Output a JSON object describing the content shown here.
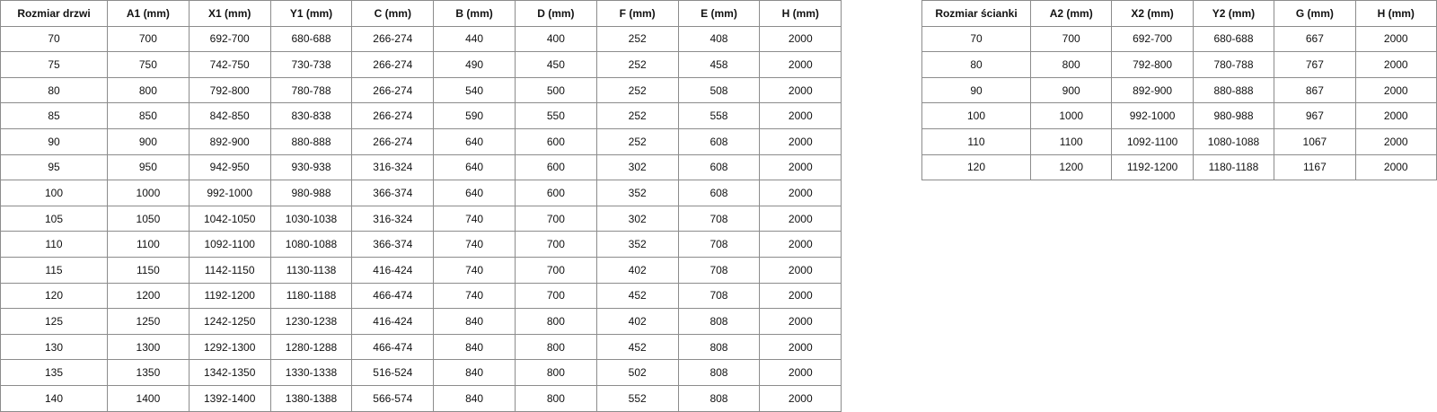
{
  "doors_table": {
    "headers": [
      "Rozmiar drzwi",
      "A1 (mm)",
      "X1 (mm)",
      "Y1 (mm)",
      "C (mm)",
      "B (mm)",
      "D (mm)",
      "F (mm)",
      "E (mm)",
      "H (mm)"
    ],
    "rows": [
      [
        "70",
        "700",
        "692-700",
        "680-688",
        "266-274",
        "440",
        "400",
        "252",
        "408",
        "2000"
      ],
      [
        "75",
        "750",
        "742-750",
        "730-738",
        "266-274",
        "490",
        "450",
        "252",
        "458",
        "2000"
      ],
      [
        "80",
        "800",
        "792-800",
        "780-788",
        "266-274",
        "540",
        "500",
        "252",
        "508",
        "2000"
      ],
      [
        "85",
        "850",
        "842-850",
        "830-838",
        "266-274",
        "590",
        "550",
        "252",
        "558",
        "2000"
      ],
      [
        "90",
        "900",
        "892-900",
        "880-888",
        "266-274",
        "640",
        "600",
        "252",
        "608",
        "2000"
      ],
      [
        "95",
        "950",
        "942-950",
        "930-938",
        "316-324",
        "640",
        "600",
        "302",
        "608",
        "2000"
      ],
      [
        "100",
        "1000",
        "992-1000",
        "980-988",
        "366-374",
        "640",
        "600",
        "352",
        "608",
        "2000"
      ],
      [
        "105",
        "1050",
        "1042-1050",
        "1030-1038",
        "316-324",
        "740",
        "700",
        "302",
        "708",
        "2000"
      ],
      [
        "110",
        "1100",
        "1092-1100",
        "1080-1088",
        "366-374",
        "740",
        "700",
        "352",
        "708",
        "2000"
      ],
      [
        "115",
        "1150",
        "1142-1150",
        "1130-1138",
        "416-424",
        "740",
        "700",
        "402",
        "708",
        "2000"
      ],
      [
        "120",
        "1200",
        "1192-1200",
        "1180-1188",
        "466-474",
        "740",
        "700",
        "452",
        "708",
        "2000"
      ],
      [
        "125",
        "1250",
        "1242-1250",
        "1230-1238",
        "416-424",
        "840",
        "800",
        "402",
        "808",
        "2000"
      ],
      [
        "130",
        "1300",
        "1292-1300",
        "1280-1288",
        "466-474",
        "840",
        "800",
        "452",
        "808",
        "2000"
      ],
      [
        "135",
        "1350",
        "1342-1350",
        "1330-1338",
        "516-524",
        "840",
        "800",
        "502",
        "808",
        "2000"
      ],
      [
        "140",
        "1400",
        "1392-1400",
        "1380-1388",
        "566-574",
        "840",
        "800",
        "552",
        "808",
        "2000"
      ]
    ]
  },
  "wall_table": {
    "headers": [
      "Rozmiar ścianki",
      "A2 (mm)",
      "X2 (mm)",
      "Y2 (mm)",
      "G (mm)",
      "H (mm)"
    ],
    "rows": [
      [
        "70",
        "700",
        "692-700",
        "680-688",
        "667",
        "2000"
      ],
      [
        "80",
        "800",
        "792-800",
        "780-788",
        "767",
        "2000"
      ],
      [
        "90",
        "900",
        "892-900",
        "880-888",
        "867",
        "2000"
      ],
      [
        "100",
        "1000",
        "992-1000",
        "980-988",
        "967",
        "2000"
      ],
      [
        "110",
        "1100",
        "1092-1100",
        "1080-1088",
        "1067",
        "2000"
      ],
      [
        "120",
        "1200",
        "1192-1200",
        "1180-1188",
        "1167",
        "2000"
      ]
    ]
  }
}
